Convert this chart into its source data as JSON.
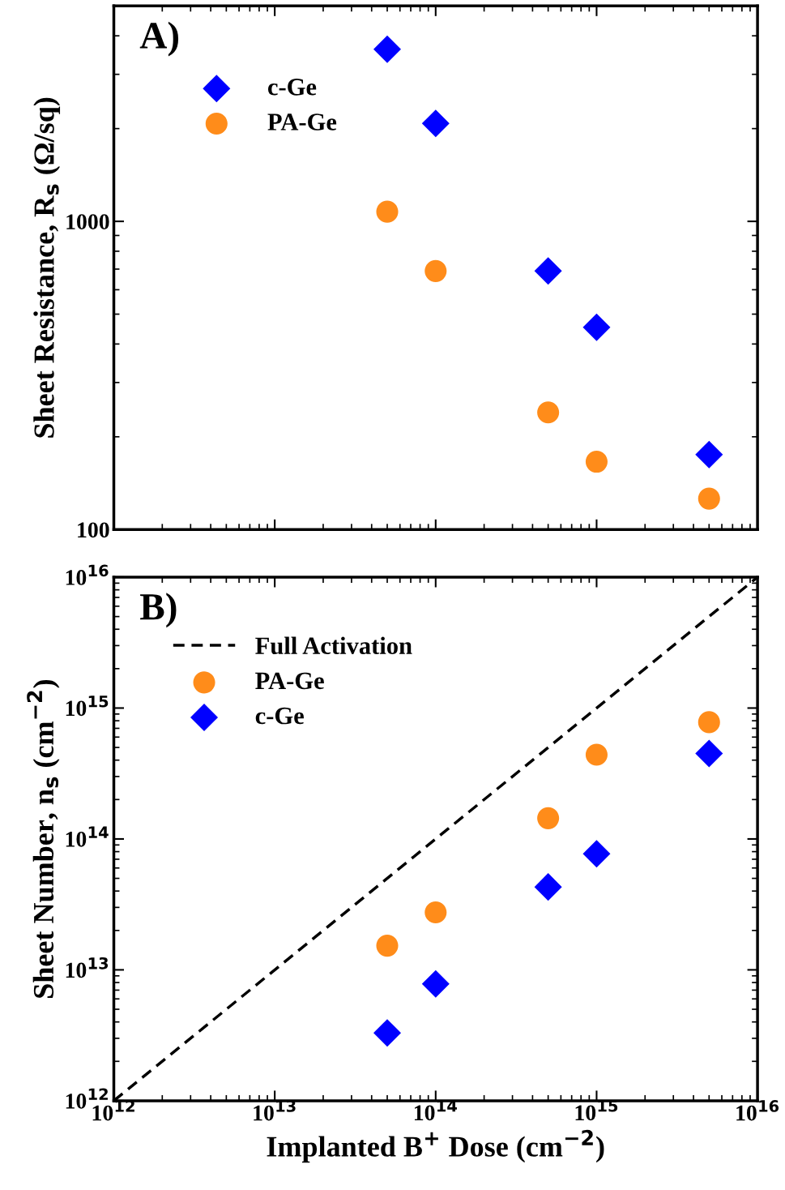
{
  "chart_data": [
    {
      "type": "scatter",
      "log": "xy",
      "annotations": [
        "A)"
      ],
      "ylabel": "Sheet Resistance, R$_{s}$ (Ω/sq)",
      "xlim": [
        1000000000000.0,
        1e+16
      ],
      "ylim": [
        100,
        5000
      ],
      "xticks": [
        {
          "value": 1000000000000.0,
          "label": null
        },
        {
          "value": 10000000000000.0,
          "label": null
        },
        {
          "value": 100000000000000.0,
          "label": null
        },
        {
          "value": 1000000000000000.0,
          "label": null
        },
        {
          "value": 1e+16,
          "label": null
        }
      ],
      "yticks": [
        100,
        1000
      ],
      "tick_labels": "y",
      "legend": "top left",
      "grid": false,
      "series": [
        {
          "name": "c-Ge",
          "color": "#0000ff",
          "marker": "diamond",
          "x": [
            50000000000000.0,
            100000000000000.0,
            500000000000000.0,
            1000000000000000.0,
            5000000000000000.0
          ],
          "values": [
            3620,
            2080,
            690,
            453,
            175
          ]
        },
        {
          "name": "PA-Ge",
          "color": "#ff8c1a",
          "marker": "circle",
          "x": [
            50000000000000.0,
            100000000000000.0,
            500000000000000.0,
            1000000000000000.0,
            5000000000000000.0
          ],
          "values": [
            1075,
            690,
            240,
            166,
            126
          ]
        }
      ]
    },
    {
      "type": "scatter",
      "log": "xy",
      "annotations": [
        "B)"
      ],
      "xlabel": "Implanted B$^{+}$ Dose (cm$^{−2}$)",
      "ylabel": "Sheet Number, n$_{s}$ (cm$^{−2}$)",
      "xlim": [
        1000000000000.0,
        1e+16
      ],
      "ylim": [
        1000000000000.0,
        1e+16
      ],
      "xticks": [
        {
          "value": 1000000000000.0,
          "label": "10$^{12}$"
        },
        {
          "value": 10000000000000.0,
          "label": "10$^{13}$"
        },
        {
          "value": 100000000000000.0,
          "label": "10$^{14}$"
        },
        {
          "value": 1000000000000000.0,
          "label": "10$^{15}$"
        },
        {
          "value": 1e+16,
          "label": "10$^{16}$"
        }
      ],
      "yticks": [
        {
          "value": 1000000000000.0,
          "label": "10$^{12}$"
        },
        {
          "value": 10000000000000.0,
          "label": "10$^{13}$"
        },
        {
          "value": 100000000000000.0,
          "label": "10$^{14}$"
        },
        {
          "value": 1000000000000000.0,
          "label": "10$^{15}$"
        },
        {
          "value": 1e+16,
          "label": "10$^{16}$"
        }
      ],
      "legend": "top left",
      "grid": false,
      "series": [
        {
          "name": "Full Activation",
          "type": "line",
          "color": "#000000",
          "marker": "none",
          "line_style": "dashed",
          "x": [
            1000000000000.0,
            1e+16
          ],
          "values": [
            1000000000000.0,
            1e+16
          ]
        },
        {
          "name": "PA-Ge",
          "color": "#ff8c1a",
          "marker": "circle",
          "x": [
            50000000000000.0,
            100000000000000.0,
            500000000000000.0,
            1000000000000000.0,
            5000000000000000.0
          ],
          "values": [
            15300000000000.0,
            27500000000000.0,
            144000000000000.0,
            440000000000000.0,
            780000000000000.0
          ]
        },
        {
          "name": "c-Ge",
          "color": "#0000ff",
          "marker": "diamond",
          "x": [
            50000000000000.0,
            100000000000000.0,
            500000000000000.0,
            1000000000000000.0,
            5000000000000000.0
          ],
          "values": [
            3300000000000.0,
            7800000000000.0,
            43000000000000.0,
            77000000000000.0,
            450000000000000.0
          ]
        }
      ]
    }
  ]
}
